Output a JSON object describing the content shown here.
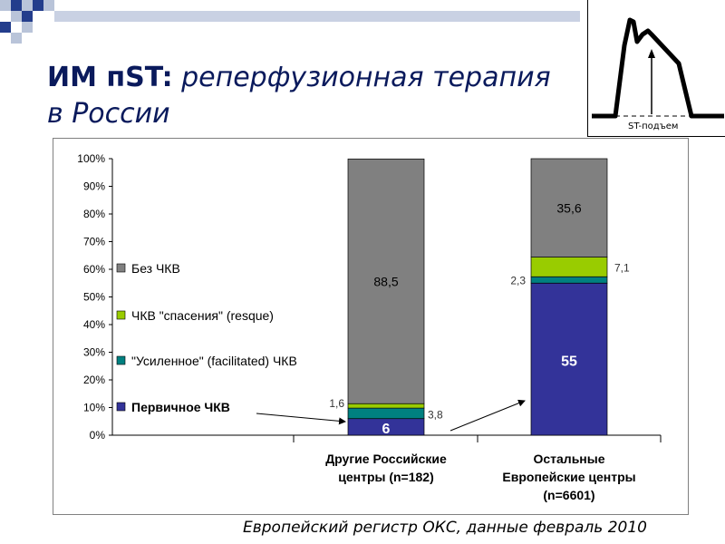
{
  "header": {
    "title_bold": "ИМ пST:",
    "title_italic": "реперфузионная терапия в России"
  },
  "ecg_inset": {
    "label": "ST-подъем"
  },
  "footer": {
    "source": "Европейский регистр ОКС, данные февраль 2010"
  },
  "colors": {
    "no_pci": "#808080",
    "rescue": "#99cc00",
    "facilitated": "#008080",
    "primary": "#333399",
    "title": "#0a1a5c"
  },
  "chart_data": {
    "type": "bar",
    "stacked": true,
    "ylim": [
      0,
      100
    ],
    "yticks": [
      "0%",
      "10%",
      "20%",
      "30%",
      "40%",
      "50%",
      "60%",
      "70%",
      "80%",
      "90%",
      "100%"
    ],
    "categories": [
      [
        "Другие Российские",
        "центры (n=182)"
      ],
      [
        "Остальные",
        "Европейские центры",
        "(n=6601)"
      ]
    ],
    "series": [
      {
        "name": "Первичное ЧКВ",
        "color": "#333399",
        "values": [
          6,
          55
        ],
        "labels": [
          "6",
          "55"
        ]
      },
      {
        "name": "\"Усиленное\" (facilitated) ЧКВ",
        "color": "#008080",
        "values": [
          3.8,
          2.3
        ],
        "labels": [
          "3,8",
          "2,3"
        ]
      },
      {
        "name": "ЧКВ \"спасения\" (resque)",
        "color": "#99cc00",
        "values": [
          1.6,
          7.1
        ],
        "labels": [
          "1,6",
          "7,1"
        ]
      },
      {
        "name": "Без ЧКВ",
        "color": "#808080",
        "values": [
          88.5,
          35.6
        ],
        "labels": [
          "88,5",
          "35,6"
        ]
      }
    ],
    "legend_order": [
      3,
      2,
      1,
      0
    ],
    "legend_placement": "left",
    "grid": false
  }
}
